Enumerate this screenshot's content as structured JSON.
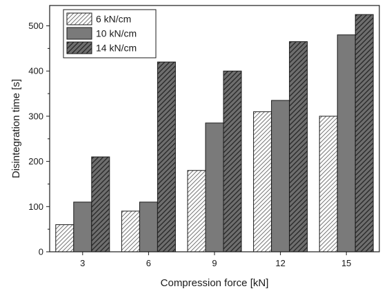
{
  "chart_data": {
    "type": "bar",
    "title": "",
    "xlabel": "Compression force [kN]",
    "ylabel": "Disintegration time [s]",
    "categories": [
      "3",
      "6",
      "9",
      "12",
      "15"
    ],
    "series": [
      {
        "name": "6 kN/cm",
        "values": [
          60,
          90,
          180,
          310,
          300
        ],
        "fill": "#ffffff",
        "pattern": "light-hatch"
      },
      {
        "name": "10 kN/cm",
        "values": [
          110,
          110,
          285,
          335,
          480
        ],
        "fill": "#7a7a7a",
        "pattern": "solid"
      },
      {
        "name": "14 kN/cm",
        "values": [
          210,
          420,
          400,
          465,
          525
        ],
        "fill": "#6e6e6e",
        "pattern": "dark-hatch"
      }
    ],
    "ylim": [
      0,
      545
    ],
    "yticks": [
      0,
      100,
      200,
      300,
      400,
      500
    ],
    "grid": false,
    "legend_position": "top-left"
  }
}
